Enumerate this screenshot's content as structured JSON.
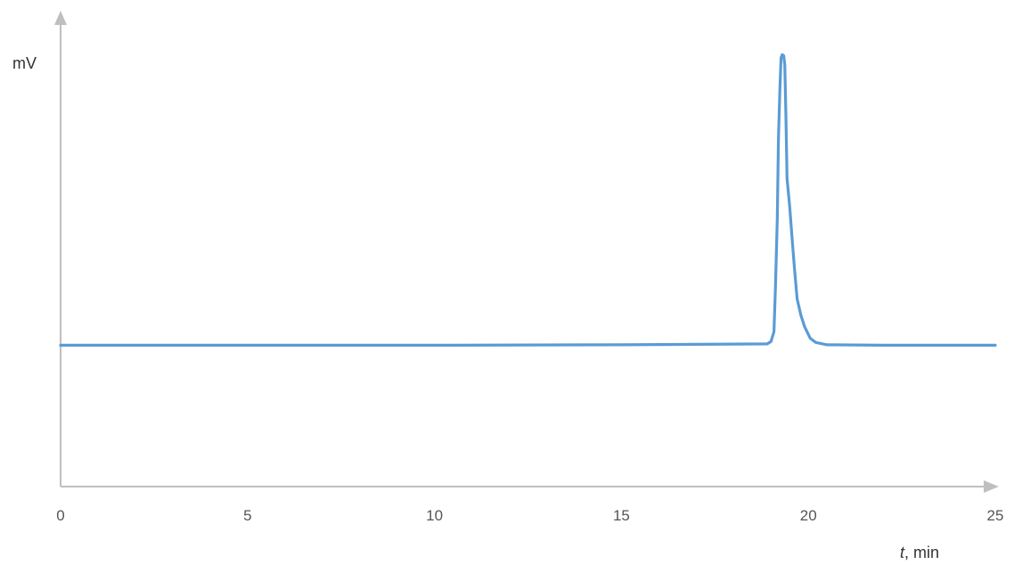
{
  "chart_data": {
    "type": "line",
    "ylabel": "mV",
    "xlabel_var": "t",
    "xlabel_unit": ", min",
    "xlim": [
      0,
      25
    ],
    "ylim": [
      0,
      100
    ],
    "x_ticks": [
      0,
      5,
      10,
      15,
      20,
      25
    ],
    "y_ticks_shown": false,
    "grid": false,
    "line_color": "#5b9bd5",
    "series": [
      {
        "points": [
          [
            0,
            30.5
          ],
          [
            5,
            30.5
          ],
          [
            10,
            30.5
          ],
          [
            15,
            30.6
          ],
          [
            18.9,
            30.8
          ],
          [
            19.0,
            31.3
          ],
          [
            19.08,
            33.4
          ],
          [
            19.12,
            43.0
          ],
          [
            19.17,
            58.0
          ],
          [
            19.2,
            75.0
          ],
          [
            19.24,
            86.0
          ],
          [
            19.27,
            92.5
          ],
          [
            19.3,
            93.2
          ],
          [
            19.34,
            93.0
          ],
          [
            19.37,
            91.0
          ],
          [
            19.4,
            80.0
          ],
          [
            19.43,
            66.5
          ],
          [
            19.5,
            60.5
          ],
          [
            19.58,
            52.0
          ],
          [
            19.63,
            47.0
          ],
          [
            19.7,
            40.5
          ],
          [
            19.8,
            37.0
          ],
          [
            19.9,
            34.5
          ],
          [
            20.05,
            32.0
          ],
          [
            20.2,
            31.1
          ],
          [
            20.5,
            30.6
          ],
          [
            22,
            30.5
          ],
          [
            25,
            30.5
          ]
        ]
      }
    ]
  }
}
